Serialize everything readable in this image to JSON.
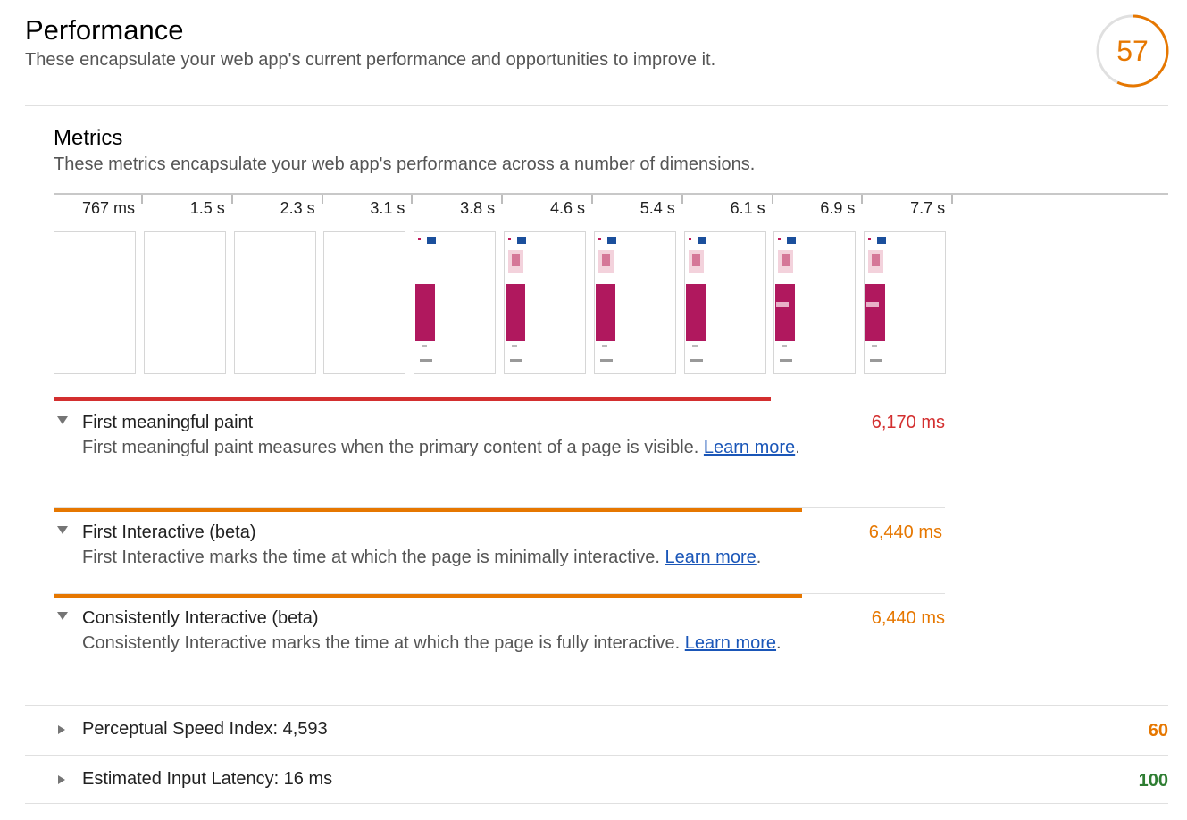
{
  "section": {
    "title": "Performance",
    "description": "These encapsulate your web app's current performance and opportunities to improve it.",
    "score": "57",
    "score_fraction": 0.57,
    "score_color": "#e67700"
  },
  "metrics": {
    "title": "Metrics",
    "description": "These metrics encapsulate your web app's performance across a number of dimensions.",
    "filmstrip": {
      "timestamps": [
        "767 ms",
        "1.5 s",
        "2.3 s",
        "3.1 s",
        "3.8 s",
        "4.6 s",
        "5.4 s",
        "6.1 s",
        "6.9 s",
        "7.7 s"
      ],
      "rendered": [
        false,
        false,
        false,
        false,
        true,
        true,
        true,
        true,
        true,
        true
      ]
    },
    "items": [
      {
        "title": "First meaningful paint",
        "desc_prefix": "First meaningful paint measures when the primary content of a page is visible. ",
        "link_text": "Learn more",
        "desc_suffix": ".",
        "value": "6,170 ms",
        "value_color": "#d32f2f",
        "bar_fraction": 0.805,
        "bar_color": "#d32f2f"
      },
      {
        "title": "First Interactive (beta)",
        "desc_prefix": "First Interactive marks the time at which the page is minimally interactive. ",
        "link_text": "Learn more",
        "desc_suffix": ".",
        "value": "6,440 ms",
        "value_color": "#e67700",
        "bar_fraction": 0.84,
        "bar_color": "#e67700"
      },
      {
        "title": "Consistently Interactive (beta)",
        "desc_prefix": "Consistently Interactive marks the time at which the page is fully interactive. ",
        "link_text": "Learn more",
        "desc_suffix": ".",
        "value": "6,440 ms",
        "value_color": "#e67700",
        "bar_fraction": 0.84,
        "bar_color": "#e67700"
      }
    ],
    "collapsed": [
      {
        "label": "Perceptual Speed Index: 4,593",
        "score": "60",
        "score_color": "#e67700"
      },
      {
        "label": "Estimated Input Latency: 16 ms",
        "score": "100",
        "score_color": "#2e7d32"
      }
    ]
  }
}
